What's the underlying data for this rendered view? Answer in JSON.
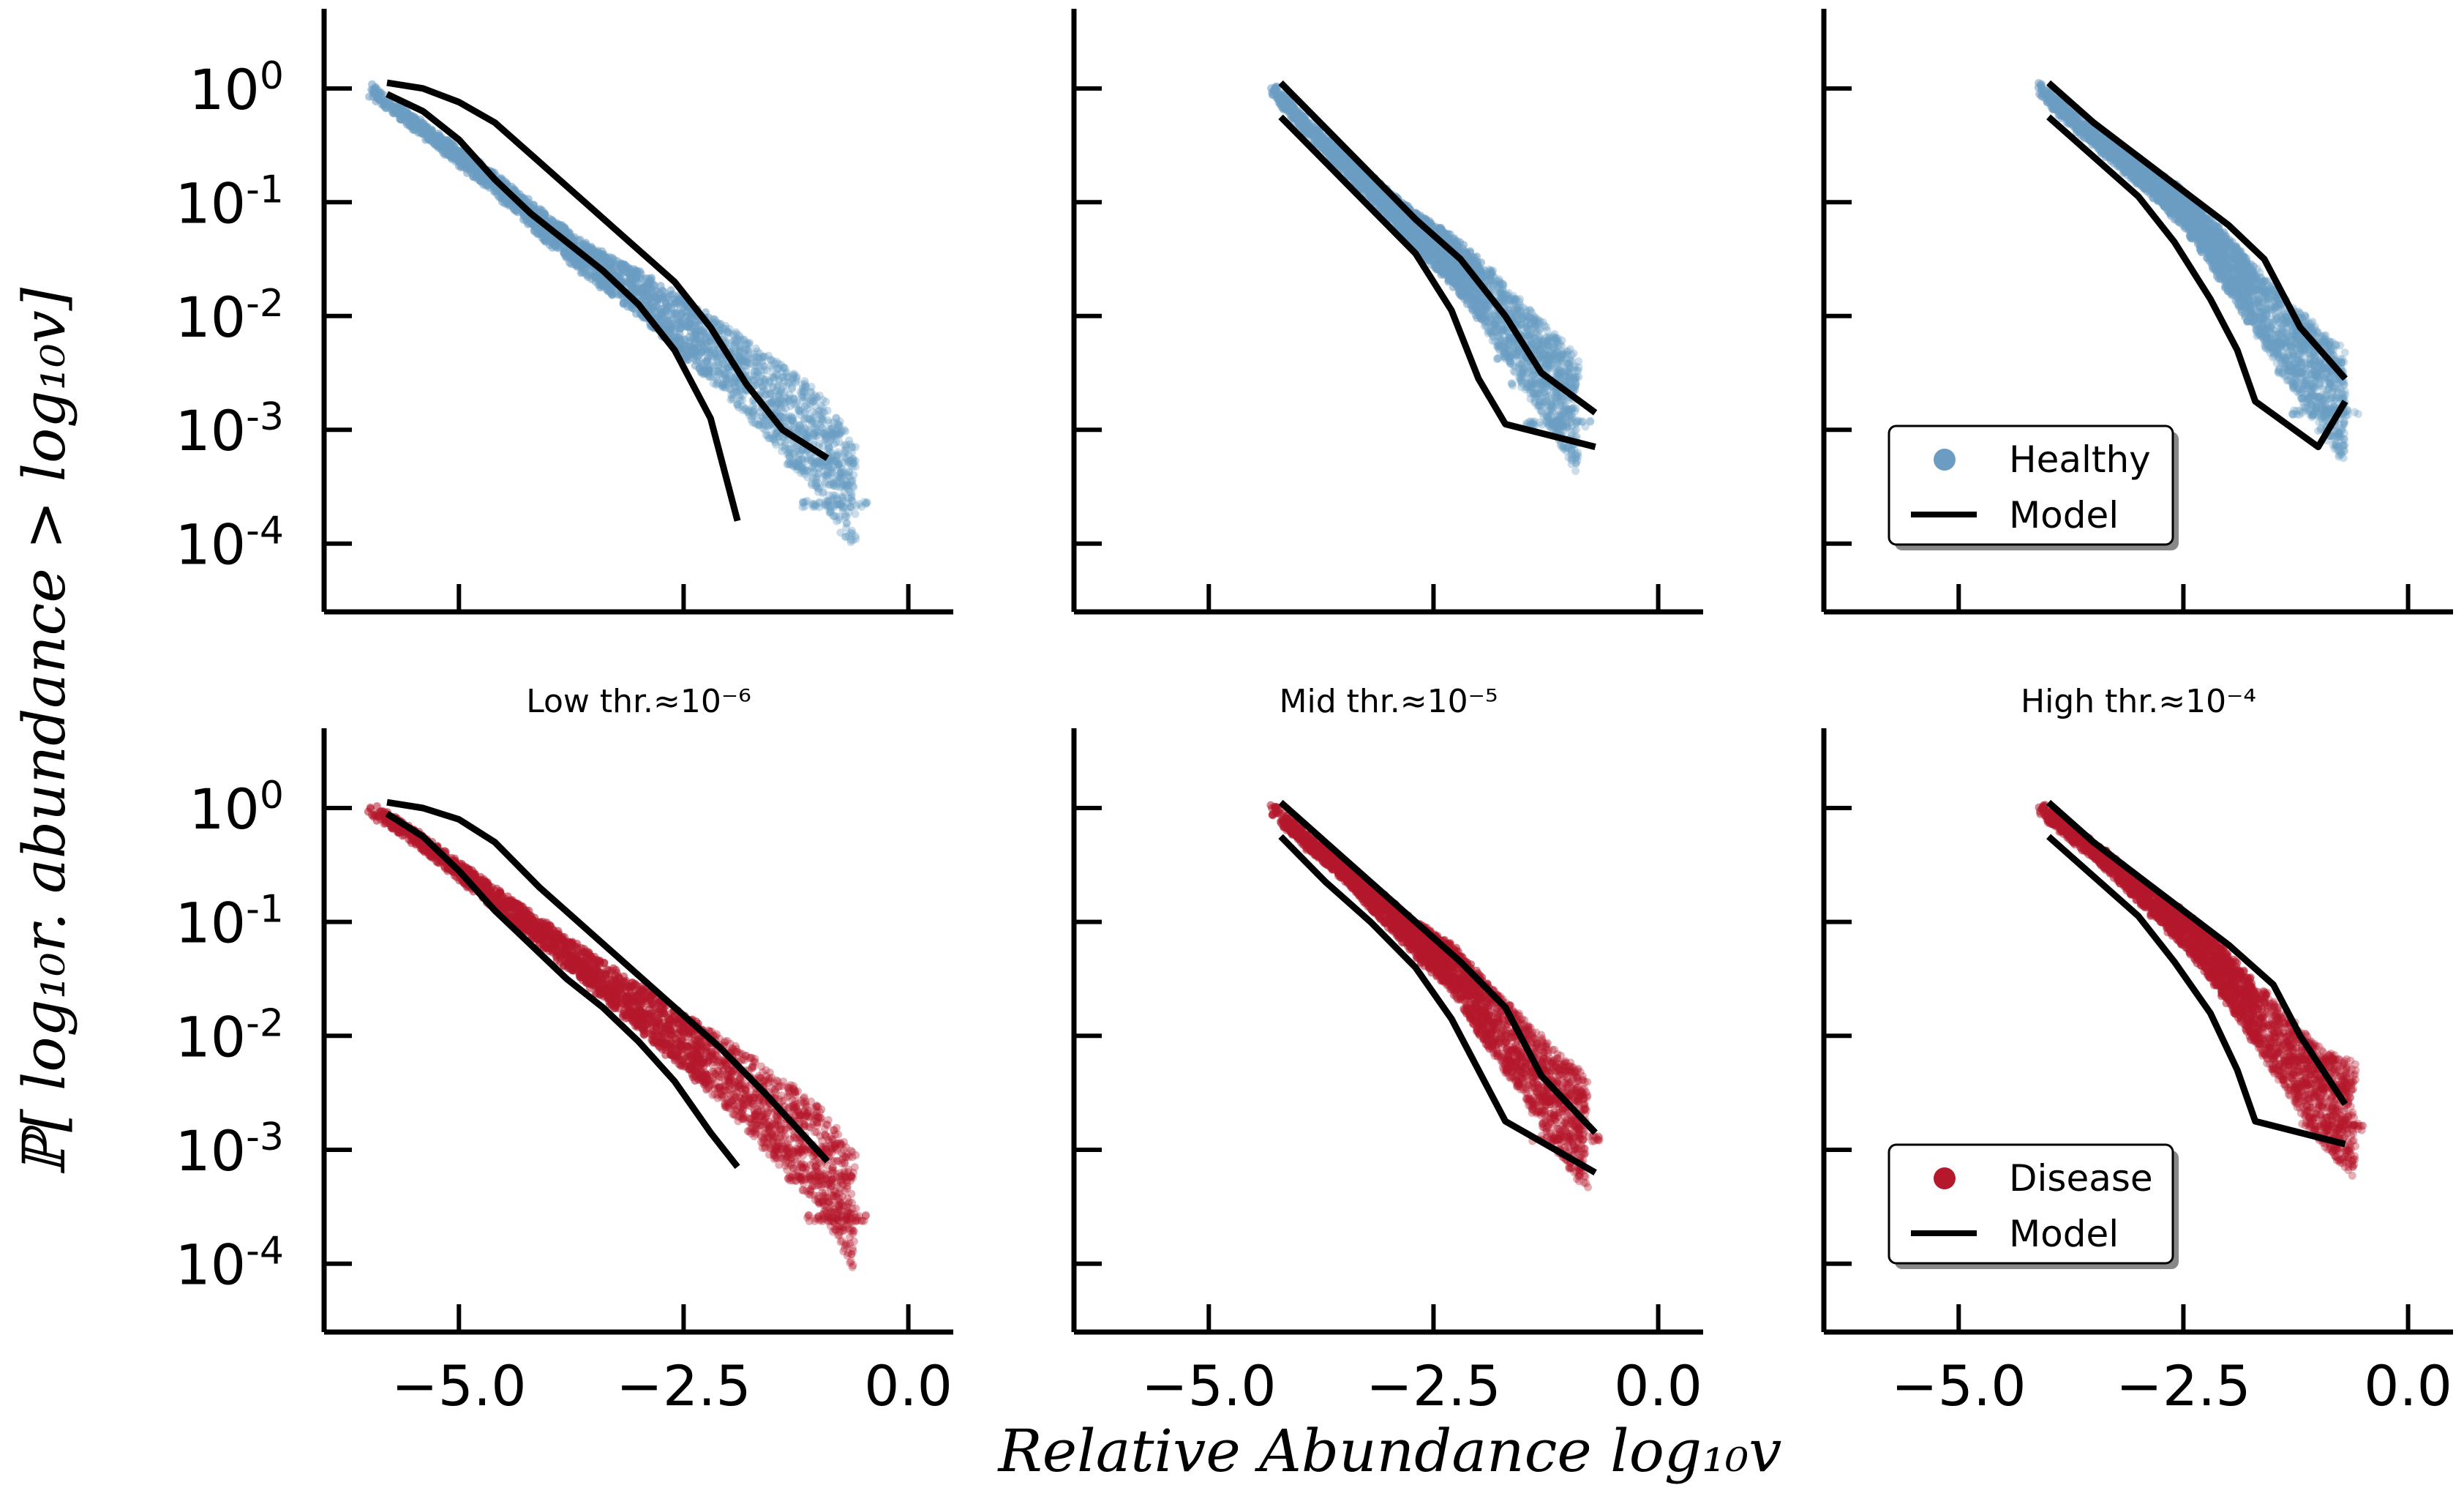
{
  "figure": {
    "xlabel": "Relative Abundance log₁₀v",
    "ylabel": "ℙ[ log₁₀r. abundance > log₁₀v]"
  },
  "legends": {
    "healthy": {
      "series_label": "Healthy",
      "model_label": "Model"
    },
    "disease": {
      "series_label": "Disease",
      "model_label": "Model"
    }
  },
  "colors": {
    "healthy": "#6b9dc2",
    "disease": "#b5172b",
    "model": "#000000"
  },
  "chart_data": [
    {
      "type": "scatter",
      "group": "healthy",
      "threshold": "low",
      "title": "",
      "xlim": [
        -6.5,
        0.5
      ],
      "ylim_log10": [
        -4.6,
        0.7
      ],
      "yscale": "log",
      "xticks": [
        "−5.0",
        "−2.5",
        "0.0"
      ],
      "yticks": [
        "10^0",
        "10^-1",
        "10^-2",
        "10^-3",
        "10^-4"
      ],
      "scatter_center": {
        "x": [
          -6.0,
          -5.5,
          -5.0,
          -4.5,
          -4.0,
          -3.5,
          -3.0,
          -2.5,
          -2.0,
          -1.5,
          -1.0,
          -0.6
        ],
        "log10_y": [
          0,
          -0.3,
          -0.6,
          -0.9,
          -1.25,
          -1.55,
          -1.8,
          -2.1,
          -2.4,
          -2.75,
          -3.1,
          -3.6
        ]
      },
      "model_upper": {
        "x": [
          -5.8,
          -5.4,
          -5.0,
          -4.6,
          -4.1,
          -3.6,
          -3.1,
          -2.6,
          -2.2,
          -1.8,
          -1.4,
          -0.9
        ],
        "log10_y": [
          0.05,
          0.0,
          -0.12,
          -0.3,
          -0.65,
          -1.0,
          -1.35,
          -1.7,
          -2.1,
          -2.6,
          -3.0,
          -3.25
        ]
      },
      "model_lower": {
        "x": [
          -5.8,
          -5.4,
          -5.0,
          -4.6,
          -4.2,
          -3.8,
          -3.4,
          -3.0,
          -2.6,
          -2.2,
          -1.9
        ],
        "log10_y": [
          -0.05,
          -0.2,
          -0.45,
          -0.8,
          -1.1,
          -1.35,
          -1.6,
          -1.9,
          -2.3,
          -2.9,
          -3.8
        ]
      }
    },
    {
      "type": "scatter",
      "group": "healthy",
      "threshold": "mid",
      "title": "",
      "xlim": [
        -6.5,
        0.5
      ],
      "ylim_log10": [
        -4.6,
        0.7
      ],
      "yscale": "log",
      "xticks": [
        "−5.0",
        "−2.5",
        "0.0"
      ],
      "yticks": [
        "10^0",
        "10^-1",
        "10^-2",
        "10^-3",
        "10^-4"
      ],
      "scatter_center": {
        "x": [
          -4.3,
          -3.9,
          -3.5,
          -3.1,
          -2.7,
          -2.3,
          -2.0,
          -1.7,
          -1.4,
          -1.1,
          -0.9
        ],
        "log10_y": [
          0,
          -0.35,
          -0.65,
          -0.95,
          -1.25,
          -1.5,
          -1.75,
          -2.05,
          -2.35,
          -2.65,
          -2.9
        ]
      },
      "model_upper": {
        "x": [
          -4.2,
          -3.7,
          -3.2,
          -2.7,
          -2.2,
          -1.7,
          -1.3,
          -0.7
        ],
        "log10_y": [
          0.05,
          -0.35,
          -0.75,
          -1.15,
          -1.5,
          -2.0,
          -2.5,
          -2.85
        ]
      },
      "model_lower": {
        "x": [
          -4.2,
          -3.7,
          -3.2,
          -2.7,
          -2.3,
          -2.0,
          -1.7,
          -0.7
        ],
        "log10_y": [
          -0.25,
          -0.65,
          -1.05,
          -1.45,
          -1.95,
          -2.55,
          -2.95,
          -3.15
        ]
      }
    },
    {
      "type": "scatter",
      "group": "healthy",
      "threshold": "high",
      "title": "",
      "xlim": [
        -6.5,
        0.5
      ],
      "ylim_log10": [
        -4.6,
        0.7
      ],
      "yscale": "log",
      "xticks": [
        "−5.0",
        "−2.5",
        "0.0"
      ],
      "yticks": [
        "10^0",
        "10^-1",
        "10^-2",
        "10^-3",
        "10^-4"
      ],
      "scatter_center": {
        "x": [
          -4.1,
          -3.7,
          -3.3,
          -2.9,
          -2.5,
          -2.2,
          -1.9,
          -1.6,
          -1.3,
          -1.0,
          -0.7
        ],
        "log10_y": [
          0,
          -0.3,
          -0.55,
          -0.8,
          -1.05,
          -1.35,
          -1.65,
          -1.95,
          -2.25,
          -2.55,
          -2.8
        ]
      },
      "model_upper": {
        "x": [
          -4.0,
          -3.5,
          -3.0,
          -2.5,
          -2.0,
          -1.6,
          -1.2,
          -0.7
        ],
        "log10_y": [
          0.05,
          -0.3,
          -0.6,
          -0.9,
          -1.2,
          -1.5,
          -2.1,
          -2.55
        ]
      },
      "model_lower": {
        "x": [
          -4.0,
          -3.5,
          -3.0,
          -2.6,
          -2.2,
          -1.9,
          -1.7,
          -1.0,
          -0.7
        ],
        "log10_y": [
          -0.25,
          -0.6,
          -0.95,
          -1.35,
          -1.85,
          -2.3,
          -2.75,
          -3.15,
          -2.75
        ]
      }
    },
    {
      "type": "scatter",
      "group": "disease",
      "threshold": "low",
      "title": "Low thr.≈10⁻⁶",
      "xlim": [
        -6.5,
        0.5
      ],
      "ylim_log10": [
        -4.6,
        0.7
      ],
      "yscale": "log",
      "xticks": [
        "−5.0",
        "−2.5",
        "0.0"
      ],
      "yticks": [
        "10^0",
        "10^-1",
        "10^-2",
        "10^-3",
        "10^-4"
      ],
      "scatter_center": {
        "x": [
          -6.0,
          -5.5,
          -5.0,
          -4.5,
          -4.0,
          -3.5,
          -3.0,
          -2.5,
          -2.0,
          -1.5,
          -1.0,
          -0.6
        ],
        "log10_y": [
          0,
          -0.25,
          -0.55,
          -0.85,
          -1.15,
          -1.45,
          -1.75,
          -2.05,
          -2.35,
          -2.7,
          -3.05,
          -3.55
        ]
      },
      "model_upper": {
        "x": [
          -5.8,
          -5.4,
          -5.0,
          -4.6,
          -4.1,
          -3.6,
          -3.1,
          -2.6,
          -2.1,
          -1.6,
          -0.9
        ],
        "log10_y": [
          0.05,
          0.0,
          -0.1,
          -0.3,
          -0.7,
          -1.05,
          -1.4,
          -1.75,
          -2.1,
          -2.5,
          -3.1
        ]
      },
      "model_lower": {
        "x": [
          -5.8,
          -5.4,
          -5.0,
          -4.6,
          -4.2,
          -3.8,
          -3.4,
          -3.0,
          -2.6,
          -2.2,
          -1.9
        ],
        "log10_y": [
          -0.05,
          -0.25,
          -0.55,
          -0.9,
          -1.2,
          -1.5,
          -1.75,
          -2.05,
          -2.4,
          -2.85,
          -3.15
        ]
      }
    },
    {
      "type": "scatter",
      "group": "disease",
      "threshold": "mid",
      "title": "Mid thr.≈10⁻⁵",
      "xlim": [
        -6.5,
        0.5
      ],
      "ylim_log10": [
        -4.6,
        0.7
      ],
      "yscale": "log",
      "xticks": [
        "−5.0",
        "−2.5",
        "0.0"
      ],
      "yticks": [
        "10^0",
        "10^-1",
        "10^-2",
        "10^-3",
        "10^-4"
      ],
      "scatter_center": {
        "x": [
          -4.3,
          -3.9,
          -3.5,
          -3.1,
          -2.7,
          -2.3,
          -2.0,
          -1.7,
          -1.4,
          -1.1,
          -0.8
        ],
        "log10_y": [
          0,
          -0.3,
          -0.55,
          -0.85,
          -1.15,
          -1.4,
          -1.7,
          -2.0,
          -2.3,
          -2.6,
          -2.85
        ]
      },
      "model_upper": {
        "x": [
          -4.2,
          -3.7,
          -3.2,
          -2.7,
          -2.2,
          -1.7,
          -1.3,
          -0.7
        ],
        "log10_y": [
          0.05,
          -0.3,
          -0.65,
          -1.0,
          -1.35,
          -1.75,
          -2.35,
          -2.85
        ]
      },
      "model_lower": {
        "x": [
          -4.2,
          -3.7,
          -3.2,
          -2.7,
          -2.3,
          -2.0,
          -1.7,
          -0.7
        ],
        "log10_y": [
          -0.25,
          -0.65,
          -1.0,
          -1.4,
          -1.85,
          -2.3,
          -2.75,
          -3.2
        ]
      }
    },
    {
      "type": "scatter",
      "group": "disease",
      "threshold": "high",
      "title": "High thr.≈10⁻⁴",
      "xlim": [
        -6.5,
        0.5
      ],
      "ylim_log10": [
        -4.6,
        0.7
      ],
      "yscale": "log",
      "xticks": [
        "−5.0",
        "−2.5",
        "0.0"
      ],
      "yticks": [
        "10^0",
        "10^-1",
        "10^-2",
        "10^-3",
        "10^-4"
      ],
      "scatter_center": {
        "x": [
          -4.1,
          -3.7,
          -3.3,
          -2.9,
          -2.5,
          -2.2,
          -1.9,
          -1.6,
          -1.3,
          -1.0,
          -0.6
        ],
        "log10_y": [
          0,
          -0.25,
          -0.5,
          -0.8,
          -1.05,
          -1.3,
          -1.6,
          -1.9,
          -2.2,
          -2.5,
          -2.75
        ]
      },
      "model_upper": {
        "x": [
          -4.0,
          -3.5,
          -3.0,
          -2.5,
          -2.0,
          -1.5,
          -1.2,
          -0.7
        ],
        "log10_y": [
          0.05,
          -0.3,
          -0.6,
          -0.9,
          -1.2,
          -1.55,
          -2.0,
          -2.6
        ]
      },
      "model_lower": {
        "x": [
          -4.0,
          -3.5,
          -3.0,
          -2.6,
          -2.2,
          -1.9,
          -1.7,
          -0.7
        ],
        "log10_y": [
          -0.25,
          -0.6,
          -0.95,
          -1.35,
          -1.8,
          -2.3,
          -2.75,
          -2.95
        ]
      }
    }
  ]
}
